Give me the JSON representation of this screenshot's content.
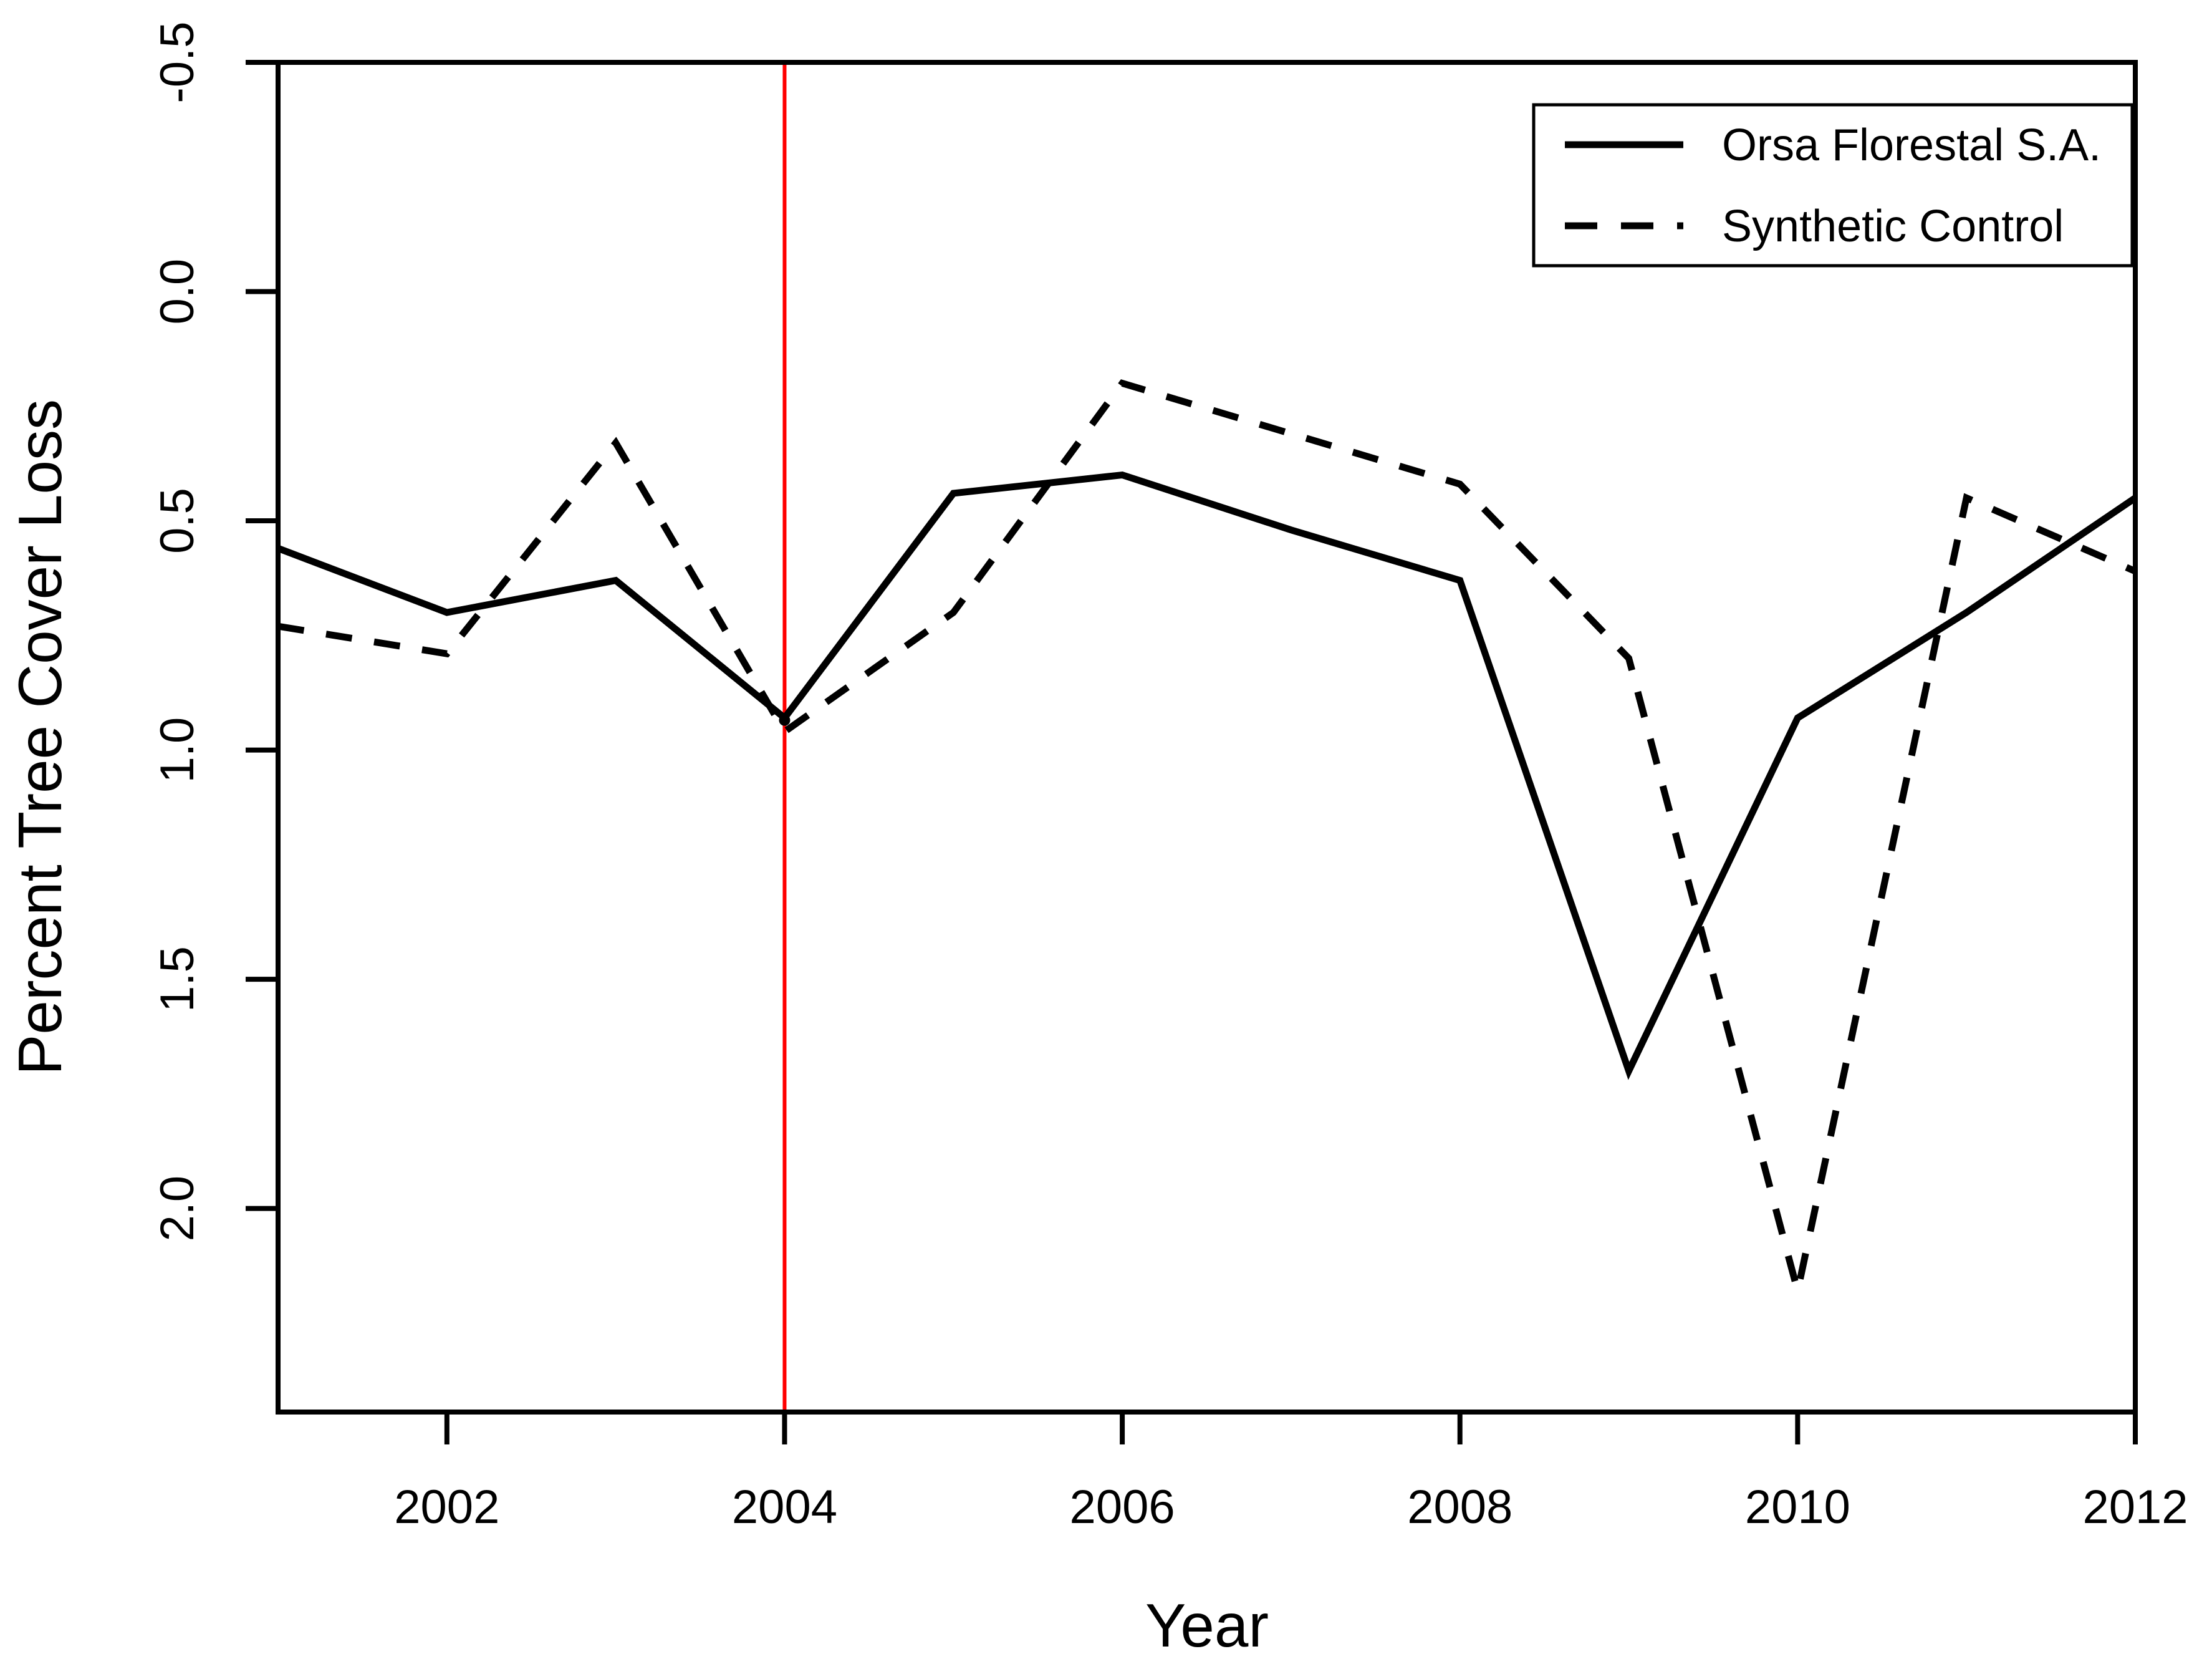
{
  "chart_data": {
    "type": "line",
    "title": "",
    "xlabel": "Year",
    "ylabel": "Percent Tree Cover Loss",
    "x": [
      2001,
      2002,
      2003,
      2004,
      2005,
      2006,
      2007,
      2008,
      2009,
      2010,
      2011,
      2012
    ],
    "series": [
      {
        "name": "Orsa Florestal S.A.",
        "line_style": "solid",
        "color": "#000000",
        "values": [
          0.56,
          0.7,
          0.63,
          0.93,
          0.44,
          0.4,
          0.52,
          0.63,
          1.7,
          0.93,
          0.7,
          0.45
        ]
      },
      {
        "name": "Synthetic Control",
        "line_style": "dashed",
        "color": "#000000",
        "values": [
          0.73,
          0.79,
          0.33,
          0.96,
          0.7,
          0.2,
          0.31,
          0.42,
          0.8,
          2.18,
          0.45,
          0.61
        ]
      }
    ],
    "x_ticks": [
      2002,
      2004,
      2006,
      2008,
      2010,
      2012
    ],
    "y_ticks": [
      "-0.5",
      "0.0",
      "0.5",
      "1.0",
      "1.5",
      "2.0"
    ],
    "xlim": [
      2001,
      2012
    ],
    "ylim": [
      -0.5,
      2.444
    ],
    "y_axis_reversed": true,
    "grid": false,
    "legend": {
      "position": "top-right",
      "entries": [
        "Orsa Florestal S.A.",
        "Synthetic Control"
      ]
    },
    "annotations": {
      "treatment_vline": {
        "x": 2004,
        "color": "#FF0000"
      },
      "convergence_marker": {
        "x": 2004,
        "y": 0.935,
        "color": "#000000"
      }
    }
  }
}
